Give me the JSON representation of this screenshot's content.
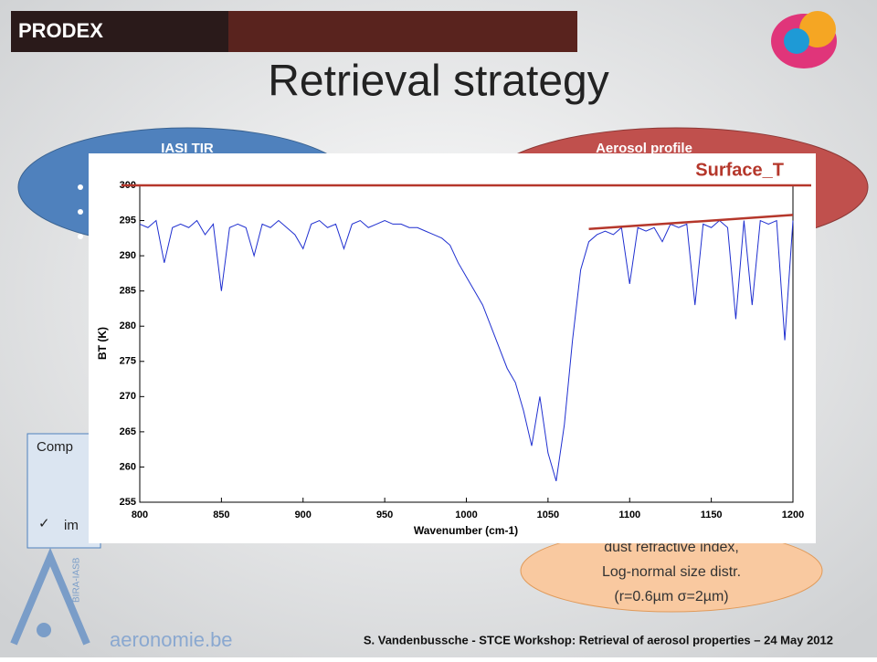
{
  "banner": "PRODEX",
  "title": "Retrieval strategy",
  "left_ellipse": "IASI TIR",
  "right_ellipse": "Aerosol profile",
  "left_box": {
    "heading": "Comp",
    "item": "im"
  },
  "bottom_ellipse": [
    "dust refractive index,",
    "Log-normal size distr.",
    "(r=0.6µm σ=2µm)"
  ],
  "logo": {
    "name": "aeronomie.be",
    "vertical": "BIRA-IASB"
  },
  "footer": "S. Vandenbussche - STCE Workshop: Retrieval of aerosol properties – 24 May 2012",
  "chart_data": {
    "type": "line",
    "xlabel": "Wavenumber (cm-1)",
    "ylabel": "BT (K)",
    "annotation": "Surface_T",
    "annotation_color": "#b5372b",
    "xlim": [
      800,
      1200
    ],
    "ylim": [
      255,
      300
    ],
    "xticks": [
      800,
      850,
      900,
      950,
      1000,
      1050,
      1100,
      1150,
      1200
    ],
    "yticks": [
      255,
      260,
      265,
      270,
      275,
      280,
      285,
      290,
      295,
      300
    ],
    "x": [
      800,
      805,
      810,
      815,
      820,
      825,
      830,
      835,
      840,
      845,
      850,
      855,
      860,
      865,
      870,
      875,
      880,
      885,
      890,
      895,
      900,
      905,
      910,
      915,
      920,
      925,
      930,
      935,
      940,
      945,
      950,
      955,
      960,
      965,
      970,
      975,
      980,
      985,
      990,
      995,
      1000,
      1005,
      1010,
      1015,
      1020,
      1025,
      1030,
      1035,
      1040,
      1045,
      1050,
      1055,
      1060,
      1065,
      1070,
      1075,
      1080,
      1085,
      1090,
      1095,
      1100,
      1105,
      1110,
      1115,
      1120,
      1125,
      1130,
      1135,
      1140,
      1145,
      1150,
      1155,
      1160,
      1165,
      1170,
      1175,
      1180,
      1185,
      1190,
      1195,
      1200
    ],
    "series": [
      {
        "color": "#1f2fd0",
        "values": [
          294.5,
          294,
          295,
          289,
          294,
          294.5,
          294,
          295,
          293,
          294.5,
          285,
          294,
          294.5,
          294,
          290,
          294.5,
          294,
          295,
          294,
          293,
          291,
          294.5,
          295,
          294,
          294.5,
          291,
          294.5,
          295,
          294,
          294.5,
          295,
          294.5,
          294.5,
          294,
          294,
          293.5,
          293,
          292.5,
          291.5,
          289,
          287,
          285,
          283,
          280,
          277,
          274,
          272,
          268,
          263,
          270,
          262,
          258,
          266,
          278,
          288,
          292,
          293,
          293.5,
          293,
          294,
          286,
          294,
          293.5,
          294,
          292,
          294.5,
          294,
          294.5,
          283,
          294.5,
          294,
          295,
          294,
          281,
          295,
          283,
          295,
          294.5,
          295,
          278,
          295
        ]
      }
    ],
    "surface_lines": [
      {
        "x": [
          800,
          1200
        ],
        "y": [
          300,
          300
        ]
      },
      {
        "x": [
          1075,
          1200
        ],
        "y": [
          293.8,
          295.8
        ]
      }
    ]
  }
}
